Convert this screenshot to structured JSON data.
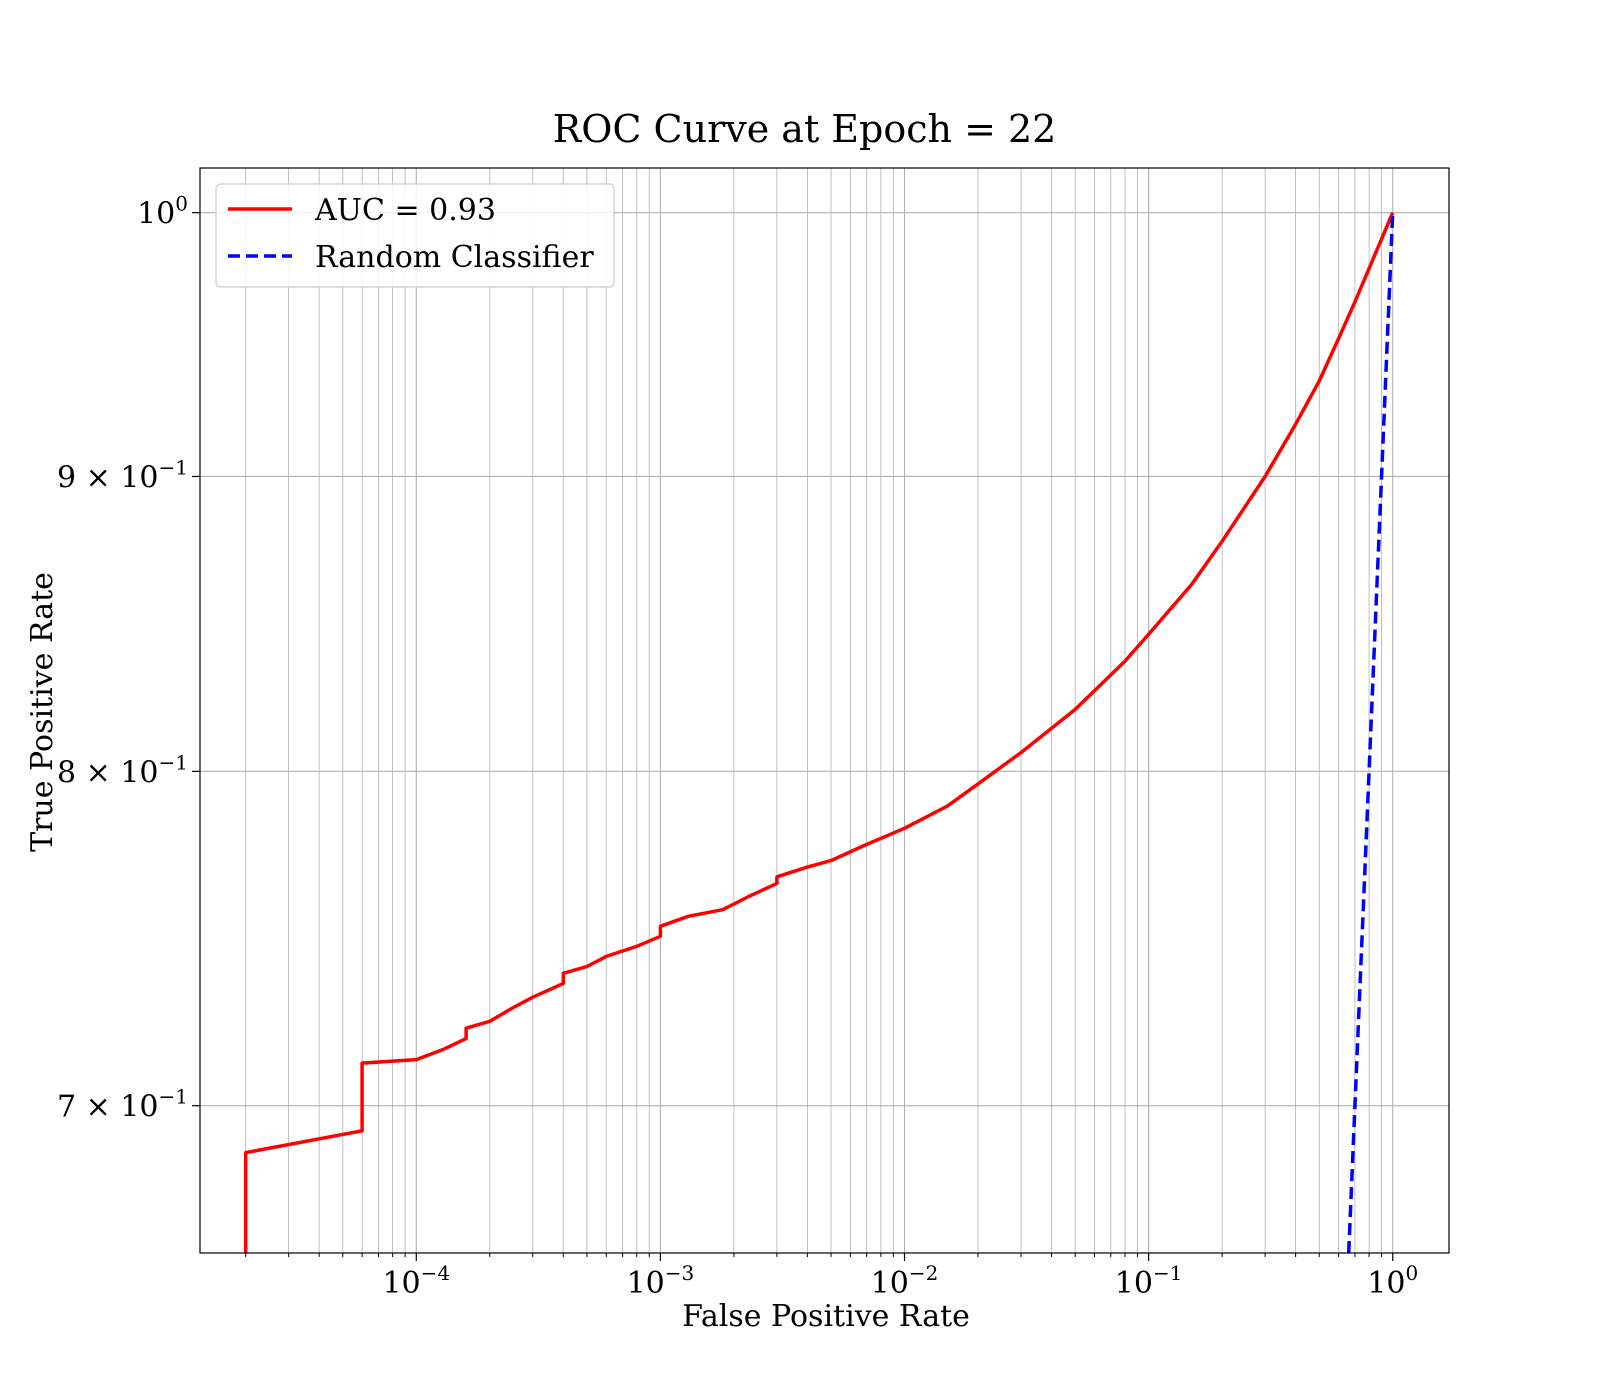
{
  "chart_data": {
    "type": "line",
    "title": "ROC Curve at Epoch = 22",
    "xlabel": "False Positive Rate",
    "ylabel": "True Positive Rate",
    "xscale": "log",
    "yscale": "log",
    "xlim": [
      1.3e-05,
      1.7
    ],
    "ylim": [
      0.66,
      1.018
    ],
    "grid": true,
    "grid_minor": true,
    "legend_position": "top-left",
    "x_ticks": [
      {
        "value": 0.0001,
        "base": "10",
        "exp": "−4"
      },
      {
        "value": 0.001,
        "base": "10",
        "exp": "−3"
      },
      {
        "value": 0.01,
        "base": "10",
        "exp": "−2"
      },
      {
        "value": 0.1,
        "base": "10",
        "exp": "−1"
      },
      {
        "value": 1,
        "base": "10",
        "exp": "0"
      }
    ],
    "y_ticks": [
      {
        "value": 1.0,
        "base": "10",
        "exp": "0"
      },
      {
        "value": 0.9,
        "base": "9 × 10",
        "exp": "−1"
      },
      {
        "value": 0.8,
        "base": "8 × 10",
        "exp": "−1"
      },
      {
        "value": 0.7,
        "base": "7 × 10",
        "exp": "−1"
      }
    ],
    "series": [
      {
        "name": "AUC = 0.93",
        "color": "#ff0000",
        "style": "solid",
        "x": [
          2e-05,
          2e-05,
          2e-05,
          6e-05,
          6e-05,
          0.0001,
          0.00013,
          0.00016,
          0.00016,
          0.0002,
          0.00025,
          0.0003,
          0.0004,
          0.0004,
          0.0005,
          0.0006,
          0.0008,
          0.001,
          0.001,
          0.0013,
          0.0018,
          0.0023,
          0.003,
          0.003,
          0.004,
          0.005,
          0.007,
          0.01,
          0.015,
          0.02,
          0.03,
          0.05,
          0.08,
          0.1,
          0.15,
          0.2,
          0.3,
          0.4,
          0.5,
          0.6,
          0.7,
          0.8,
          1.0
        ],
        "y": [
          0.66,
          0.675,
          0.687,
          0.693,
          0.712,
          0.713,
          0.716,
          0.719,
          0.722,
          0.724,
          0.728,
          0.731,
          0.735,
          0.738,
          0.74,
          0.743,
          0.746,
          0.749,
          0.752,
          0.755,
          0.757,
          0.761,
          0.765,
          0.767,
          0.77,
          0.772,
          0.777,
          0.782,
          0.789,
          0.796,
          0.806,
          0.82,
          0.836,
          0.845,
          0.862,
          0.877,
          0.9,
          0.919,
          0.935,
          0.951,
          0.965,
          0.978,
          1.0
        ]
      },
      {
        "name": "Random Classifier",
        "color": "#0000ff",
        "style": "dashed",
        "x": [
          0.66,
          1.0
        ],
        "y": [
          0.66,
          1.0
        ]
      }
    ]
  }
}
